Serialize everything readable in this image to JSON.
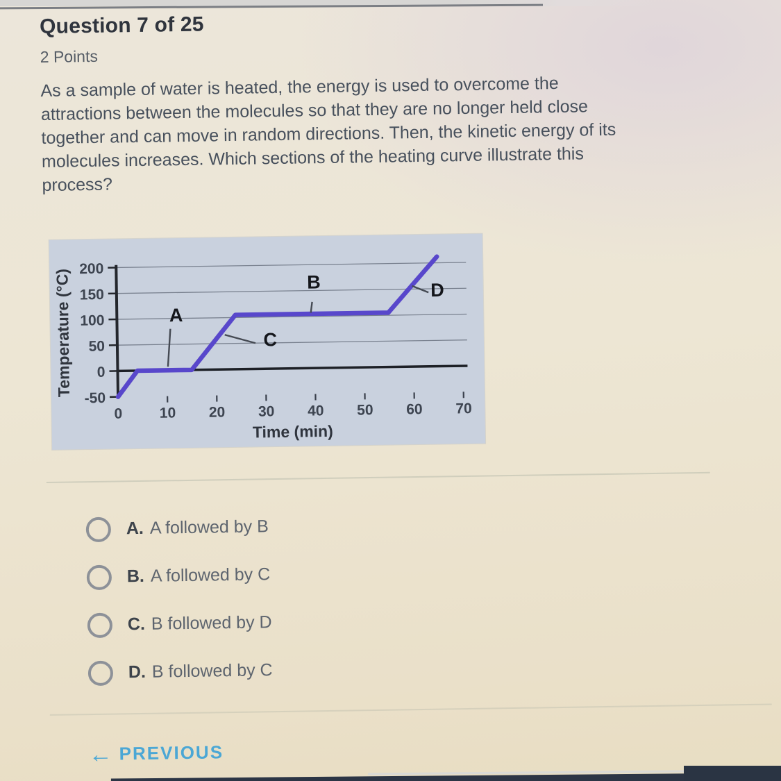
{
  "header": {
    "question_counter": "Question 7 of 25",
    "points": "2 Points"
  },
  "question": {
    "lines": [
      "As a sample of water is heated, the energy is used to overcome the",
      "attractions between the molecules so that they are no longer held close",
      "together and can move in random directions. Then, the kinetic energy of its",
      "molecules increases. Which sections of the heating curve illustrate this",
      "process?"
    ]
  },
  "chart_data": {
    "type": "line",
    "title": "",
    "xlabel": "Time (min)",
    "ylabel": "Temperature (°C)",
    "xlim": [
      0,
      70
    ],
    "ylim": [
      -50,
      215
    ],
    "xticks": [
      0,
      10,
      20,
      30,
      40,
      50,
      60,
      70
    ],
    "yticks": [
      200,
      150,
      100,
      50,
      0,
      -50
    ],
    "grid": "horizontal",
    "plot_bg": "#c9d1de",
    "line_color": "#5847cb",
    "series": [
      {
        "name": "heating curve",
        "points": [
          [
            0,
            -50
          ],
          [
            4,
            0
          ],
          [
            15,
            0
          ],
          [
            24,
            105
          ],
          [
            55,
            105
          ],
          [
            65,
            212
          ]
        ]
      }
    ],
    "annotations": [
      {
        "label": "A",
        "text_xy": [
          12,
          94
        ],
        "leader_from": [
          10.8,
          80
        ],
        "leader_to": [
          10.2,
          7
        ]
      },
      {
        "label": "B",
        "text_xy": [
          40,
          154
        ],
        "leader_from": [
          39.6,
          128
        ],
        "leader_to": [
          39.3,
          107
        ]
      },
      {
        "label": "C",
        "text_xy": [
          31,
          44
        ],
        "leader_from": [
          28,
          50
        ],
        "leader_to": [
          21.8,
          67
        ]
      },
      {
        "label": "D",
        "text_xy": [
          65,
          135
        ],
        "leader_from": [
          63.2,
          143
        ],
        "leader_to": [
          59.9,
          156
        ]
      }
    ]
  },
  "options": [
    {
      "letter": "A.",
      "text": "A followed by B"
    },
    {
      "letter": "B.",
      "text": "A followed by C"
    },
    {
      "letter": "C.",
      "text": "B followed by D"
    },
    {
      "letter": "D.",
      "text": "B followed by C"
    }
  ],
  "footer": {
    "arrow": "←",
    "previous_label": "PREVIOUS"
  },
  "colors": {
    "accent_link": "#4ba7d5",
    "chart_line": "#5847cb",
    "radio_outline": "#8d9198"
  }
}
